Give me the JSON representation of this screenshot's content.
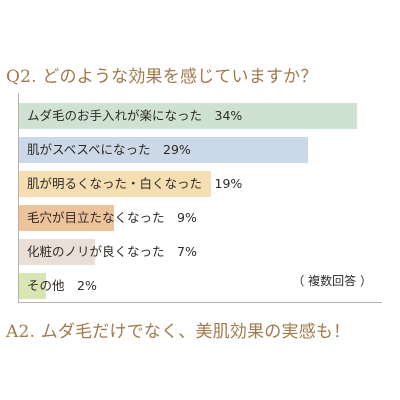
{
  "question": "Q2. どのような効果を感じていますか？",
  "answer": "A2. ムダ毛だけでなく、美肌効果の実感も！",
  "note": "（ 複数回答 ）",
  "chart_data": {
    "type": "bar",
    "orientation": "horizontal",
    "title": "Q2. どのような効果を感じていますか？",
    "categories": [
      "ムダ毛のお手入れが楽になった",
      "肌がスベスベになった",
      "肌が明るくなった・白くなった",
      "毛穴が目立たなくなった",
      "化粧のノリが良くなった",
      "その他"
    ],
    "values": [
      34,
      29,
      19,
      9,
      7,
      2
    ],
    "value_labels": [
      "34%",
      "29%",
      "19%",
      "9%",
      "7%",
      "2%"
    ],
    "labels": [
      "ムダ毛のお手入れが楽になった　34%",
      "肌がスベスベになった　29%",
      "肌が明るくなった・白くなった　19%",
      "毛穴が目立たなくなった　9%",
      "化粧のノリが良くなった　7%",
      "その他　2%"
    ],
    "colors": [
      "#cfe2d1",
      "#cbd8e7",
      "#f5dfb2",
      "#edc39c",
      "#eadfd7",
      "#d9e6b3"
    ],
    "unit": "%",
    "grid": false
  }
}
